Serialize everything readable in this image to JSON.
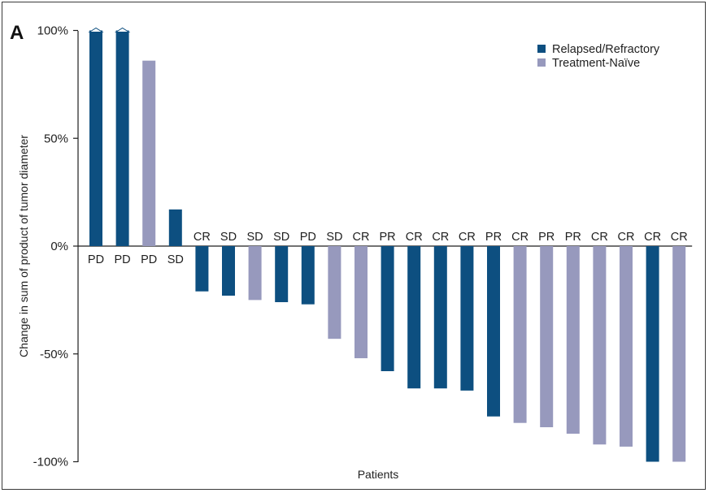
{
  "panel_label": "A",
  "chart_data": {
    "type": "bar",
    "ylabel": "Change in sum of product of tumor diameter",
    "xlabel": "Patients",
    "ylim": [
      -100,
      100
    ],
    "yticks": [
      100,
      50,
      0,
      -50,
      -100
    ],
    "ytick_labels": [
      "100%",
      "50%",
      "0%",
      "-50%",
      "-100%"
    ],
    "grid": false,
    "legend_position": "top-right",
    "colors": {
      "Relapsed/Refractory": "#0d4f80",
      "Treatment-Naïve": "#9799bd"
    },
    "legend": [
      "Relapsed/Refractory",
      "Treatment-Naïve"
    ],
    "bars": [
      {
        "value": 100,
        "response": "PD",
        "group": "Relapsed/Refractory",
        "capped": true
      },
      {
        "value": 100,
        "response": "PD",
        "group": "Relapsed/Refractory",
        "capped": true
      },
      {
        "value": 86,
        "response": "PD",
        "group": "Treatment-Naïve"
      },
      {
        "value": 17,
        "response": "SD",
        "group": "Relapsed/Refractory"
      },
      {
        "value": -21,
        "response": "CR",
        "group": "Relapsed/Refractory"
      },
      {
        "value": -23,
        "response": "SD",
        "group": "Relapsed/Refractory"
      },
      {
        "value": -25,
        "response": "SD",
        "group": "Treatment-Naïve"
      },
      {
        "value": -26,
        "response": "SD",
        "group": "Relapsed/Refractory"
      },
      {
        "value": -27,
        "response": "PD",
        "group": "Relapsed/Refractory"
      },
      {
        "value": -43,
        "response": "SD",
        "group": "Treatment-Naïve"
      },
      {
        "value": -52,
        "response": "CR",
        "group": "Treatment-Naïve"
      },
      {
        "value": -58,
        "response": "PR",
        "group": "Relapsed/Refractory"
      },
      {
        "value": -66,
        "response": "CR",
        "group": "Relapsed/Refractory"
      },
      {
        "value": -66,
        "response": "CR",
        "group": "Relapsed/Refractory"
      },
      {
        "value": -67,
        "response": "CR",
        "group": "Relapsed/Refractory"
      },
      {
        "value": -79,
        "response": "PR",
        "group": "Relapsed/Refractory"
      },
      {
        "value": -82,
        "response": "CR",
        "group": "Treatment-Naïve"
      },
      {
        "value": -84,
        "response": "PR",
        "group": "Treatment-Naïve"
      },
      {
        "value": -87,
        "response": "PR",
        "group": "Treatment-Naïve"
      },
      {
        "value": -92,
        "response": "CR",
        "group": "Treatment-Naïve"
      },
      {
        "value": -93,
        "response": "CR",
        "group": "Treatment-Naïve"
      },
      {
        "value": -100,
        "response": "CR",
        "group": "Relapsed/Refractory"
      },
      {
        "value": -100,
        "response": "CR",
        "group": "Treatment-Naïve"
      }
    ]
  }
}
